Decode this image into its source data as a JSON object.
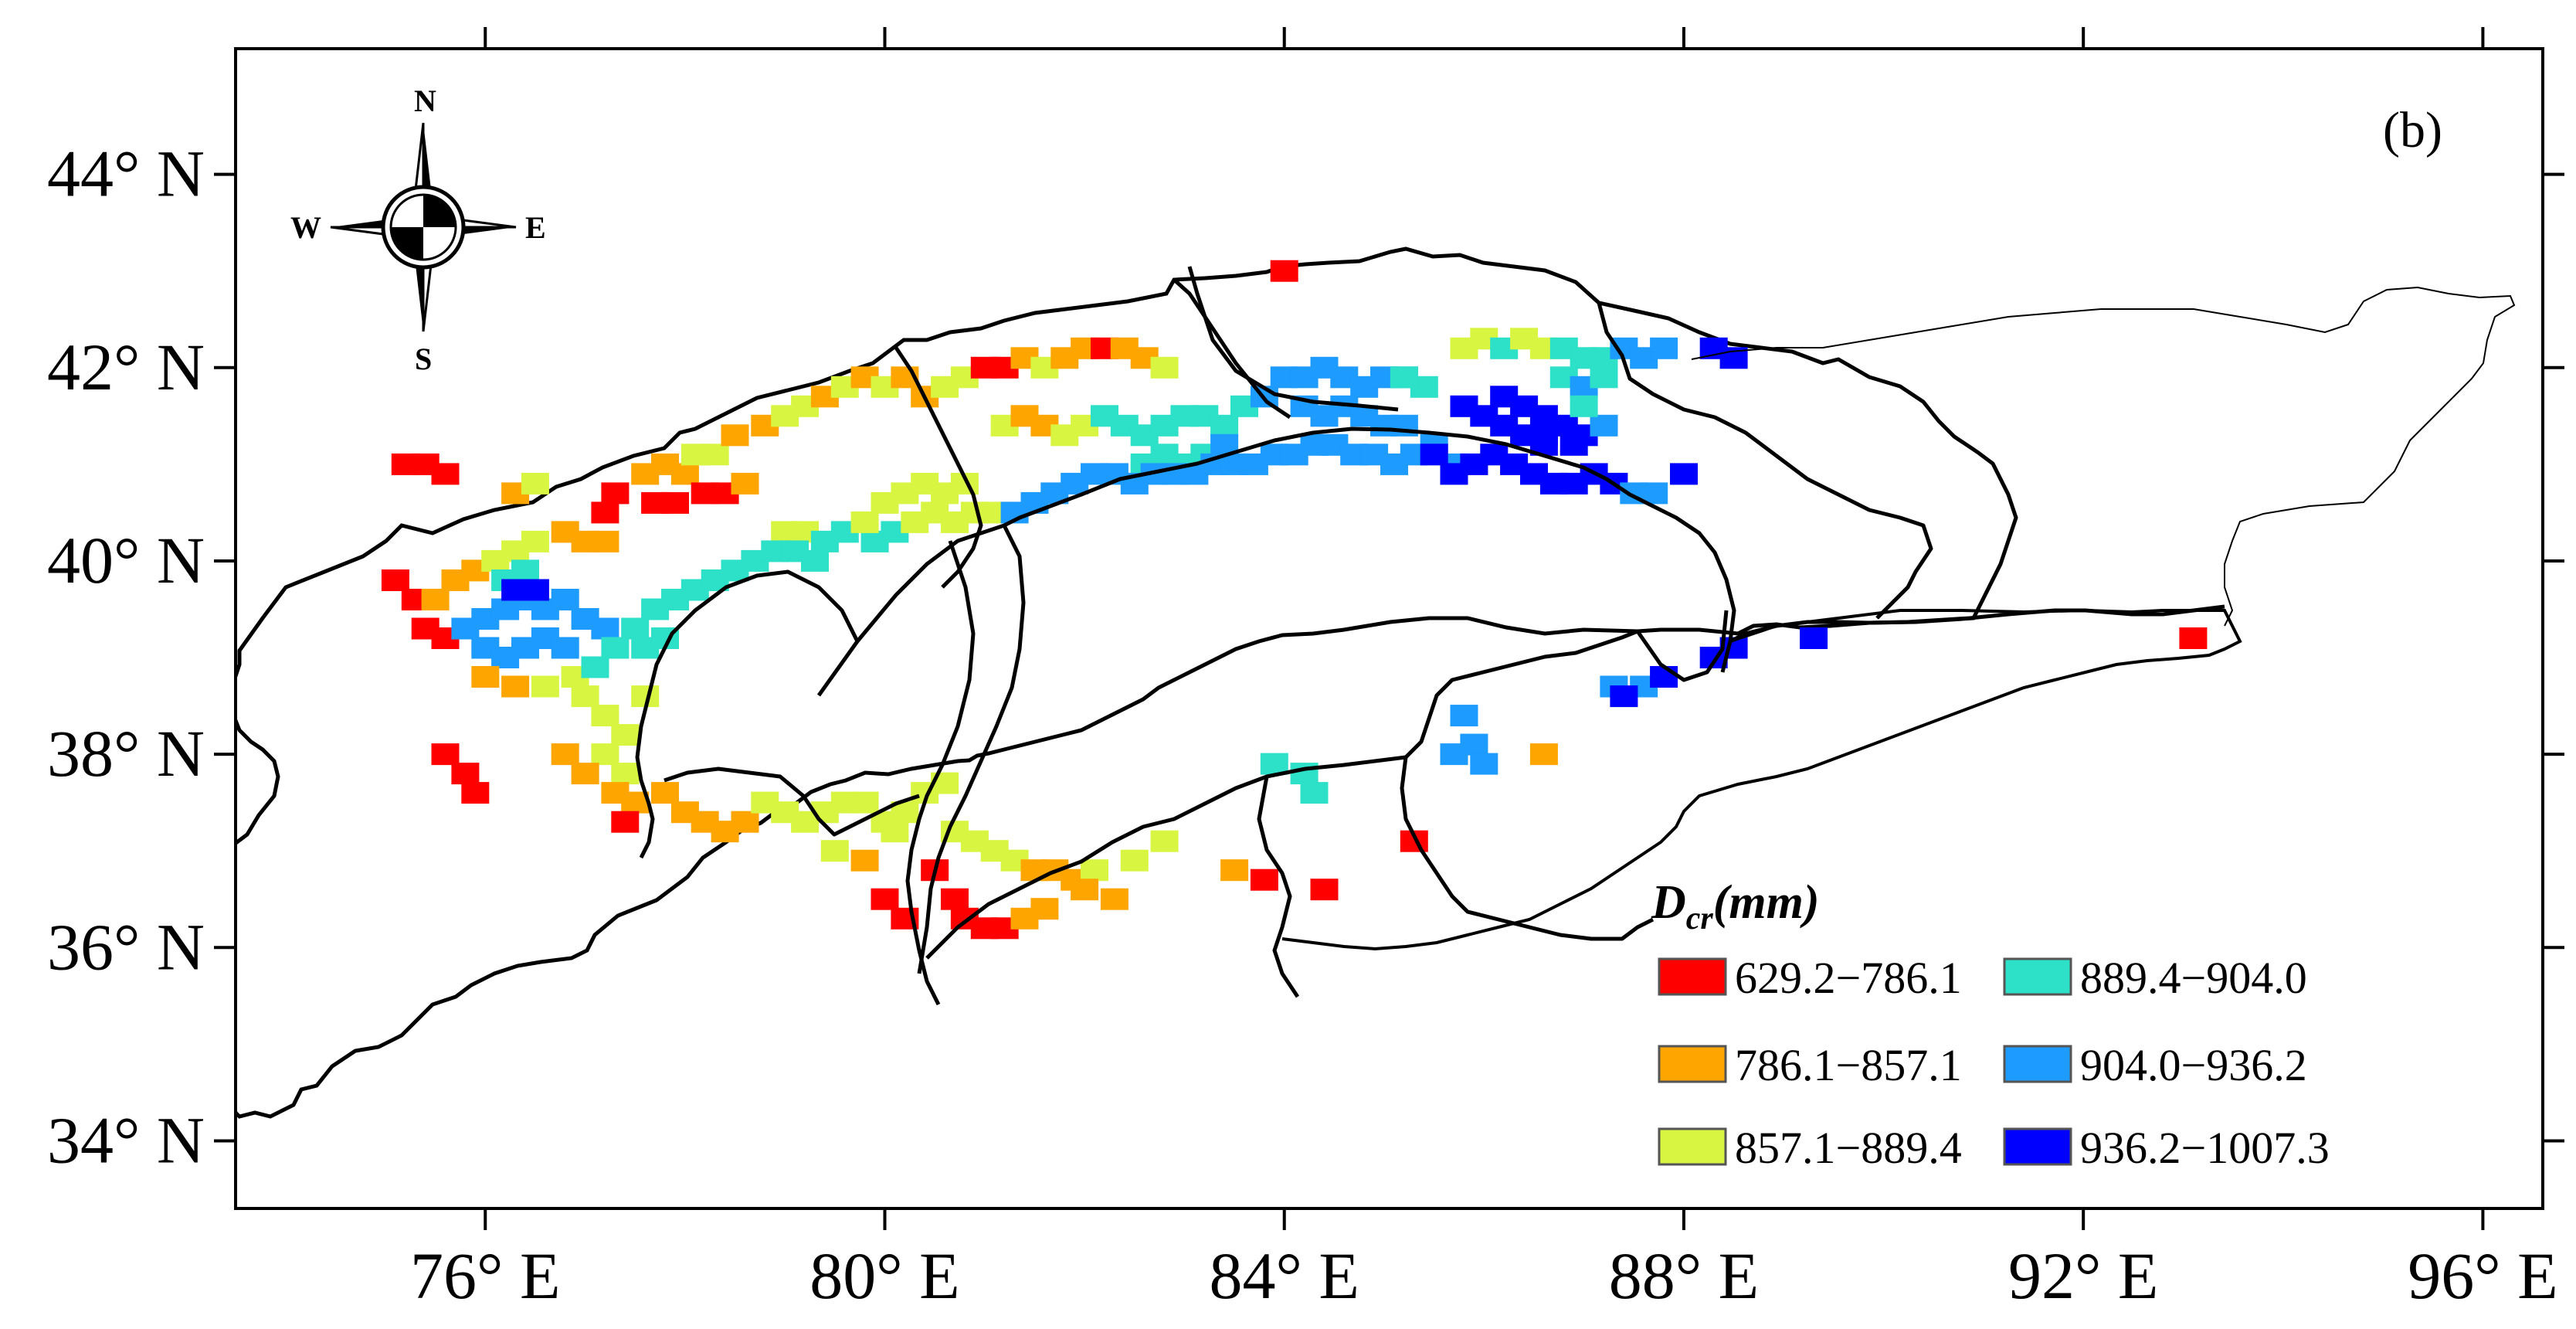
{
  "panel_label": "(b)",
  "compass": {
    "north": "N",
    "south": "S",
    "east": "E",
    "west": "W",
    "icon": "north-arrow-compass-rose"
  },
  "axes": {
    "x_ticks": [
      "76° E",
      "80° E",
      "84° E",
      "88° E",
      "92° E",
      "96° E"
    ],
    "y_ticks": [
      "44° N",
      "42° N",
      "40° N",
      "38° N",
      "36° N",
      "34° N"
    ]
  },
  "legend": {
    "title_main": "D",
    "title_sub": "cr",
    "title_unit": "(mm)",
    "items": [
      {
        "label": "629.2−786.1",
        "color": "#ff0000"
      },
      {
        "label": "786.1−857.1",
        "color": "#ffa500"
      },
      {
        "label": "857.1−889.4",
        "color": "#d8f542"
      },
      {
        "label": "889.4−904.0",
        "color": "#2de0c8"
      },
      {
        "label": "904.0−936.2",
        "color": "#1e9bff"
      },
      {
        "label": "936.2−1007.3",
        "color": "#0000ff"
      }
    ]
  },
  "class_colors": [
    "#ff0000",
    "#ffa500",
    "#d8f542",
    "#2de0c8",
    "#1e9bff",
    "#0000ff"
  ],
  "cells": [
    [
      75.2,
      41.0,
      0
    ],
    [
      75.4,
      41.0,
      0
    ],
    [
      75.6,
      40.9,
      0
    ],
    [
      76.3,
      40.7,
      1
    ],
    [
      76.5,
      40.8,
      2
    ],
    [
      77.2,
      40.5,
      0
    ],
    [
      77.3,
      40.7,
      0
    ],
    [
      77.6,
      40.9,
      1
    ],
    [
      77.8,
      41.0,
      1
    ],
    [
      78.0,
      40.9,
      1
    ],
    [
      78.1,
      41.1,
      2
    ],
    [
      78.3,
      41.1,
      2
    ],
    [
      78.5,
      41.3,
      1
    ],
    [
      78.8,
      41.4,
      1
    ],
    [
      79.0,
      41.5,
      2
    ],
    [
      79.2,
      41.6,
      2
    ],
    [
      79.4,
      41.7,
      1
    ],
    [
      79.6,
      41.8,
      2
    ],
    [
      79.8,
      41.9,
      1
    ],
    [
      80.0,
      41.8,
      2
    ],
    [
      80.2,
      41.9,
      1
    ],
    [
      80.4,
      41.7,
      1
    ],
    [
      80.6,
      41.8,
      2
    ],
    [
      80.8,
      41.9,
      2
    ],
    [
      81.0,
      42.0,
      0
    ],
    [
      81.2,
      42.0,
      0
    ],
    [
      81.4,
      42.1,
      1
    ],
    [
      81.6,
      42.0,
      2
    ],
    [
      81.8,
      42.1,
      1
    ],
    [
      82.0,
      42.2,
      1
    ],
    [
      82.2,
      42.2,
      0
    ],
    [
      82.4,
      42.2,
      1
    ],
    [
      82.6,
      42.1,
      1
    ],
    [
      82.8,
      42.0,
      2
    ],
    [
      77.7,
      40.6,
      0
    ],
    [
      77.9,
      40.6,
      0
    ],
    [
      78.2,
      40.7,
      0
    ],
    [
      78.4,
      40.7,
      0
    ],
    [
      78.6,
      40.8,
      1
    ],
    [
      79.0,
      40.3,
      2
    ],
    [
      79.2,
      40.3,
      2
    ],
    [
      79.4,
      40.2,
      3
    ],
    [
      79.6,
      40.3,
      3
    ],
    [
      79.9,
      40.2,
      3
    ],
    [
      80.1,
      40.3,
      3
    ],
    [
      80.3,
      40.4,
      2
    ],
    [
      80.5,
      40.5,
      2
    ],
    [
      80.7,
      40.4,
      2
    ],
    [
      80.9,
      40.5,
      2
    ],
    [
      81.1,
      40.5,
      2
    ],
    [
      79.8,
      40.4,
      2
    ],
    [
      80.0,
      40.6,
      2
    ],
    [
      80.2,
      40.7,
      2
    ],
    [
      80.4,
      40.8,
      2
    ],
    [
      80.6,
      40.7,
      2
    ],
    [
      80.8,
      40.8,
      2
    ],
    [
      81.2,
      41.4,
      2
    ],
    [
      81.4,
      41.5,
      1
    ],
    [
      81.6,
      41.4,
      1
    ],
    [
      81.8,
      41.3,
      2
    ],
    [
      82.0,
      41.4,
      2
    ],
    [
      82.2,
      41.5,
      3
    ],
    [
      82.4,
      41.4,
      3
    ],
    [
      82.6,
      41.3,
      3
    ],
    [
      82.8,
      41.4,
      3
    ],
    [
      83.0,
      41.5,
      3
    ],
    [
      83.2,
      41.5,
      3
    ],
    [
      83.4,
      41.4,
      3
    ],
    [
      83.6,
      41.6,
      3
    ],
    [
      83.8,
      41.7,
      4
    ],
    [
      82.6,
      41.0,
      3
    ],
    [
      82.8,
      41.1,
      3
    ],
    [
      83.0,
      41.0,
      3
    ],
    [
      83.2,
      41.1,
      3
    ],
    [
      83.4,
      41.2,
      4
    ],
    [
      81.3,
      40.5,
      4
    ],
    [
      81.5,
      40.6,
      4
    ],
    [
      81.7,
      40.7,
      4
    ],
    [
      81.9,
      40.8,
      4
    ],
    [
      82.1,
      40.9,
      4
    ],
    [
      82.3,
      40.9,
      4
    ],
    [
      82.5,
      40.8,
      4
    ],
    [
      82.7,
      40.9,
      4
    ],
    [
      82.9,
      40.9,
      4
    ],
    [
      83.1,
      40.9,
      4
    ],
    [
      83.3,
      41.0,
      4
    ],
    [
      83.5,
      41.0,
      4
    ],
    [
      83.7,
      41.0,
      4
    ],
    [
      83.9,
      41.1,
      4
    ],
    [
      84.1,
      41.1,
      4
    ],
    [
      84.3,
      41.2,
      4
    ],
    [
      84.5,
      41.2,
      4
    ],
    [
      84.7,
      41.1,
      4
    ],
    [
      84.9,
      41.1,
      4
    ],
    [
      85.1,
      41.0,
      4
    ],
    [
      85.3,
      41.1,
      4
    ],
    [
      85.5,
      41.2,
      4
    ],
    [
      85.7,
      41.0,
      4
    ],
    [
      84.0,
      41.9,
      4
    ],
    [
      84.2,
      41.9,
      4
    ],
    [
      84.4,
      42.0,
      4
    ],
    [
      84.6,
      41.9,
      4
    ],
    [
      84.8,
      41.8,
      4
    ],
    [
      85.0,
      41.9,
      4
    ],
    [
      85.2,
      41.9,
      4
    ],
    [
      85.4,
      41.8,
      3
    ],
    [
      84.2,
      41.6,
      4
    ],
    [
      84.4,
      41.5,
      4
    ],
    [
      84.6,
      41.6,
      4
    ],
    [
      84.8,
      41.5,
      4
    ],
    [
      85.0,
      41.4,
      4
    ],
    [
      85.2,
      41.4,
      4
    ],
    [
      85.5,
      41.1,
      5
    ],
    [
      85.7,
      40.9,
      5
    ],
    [
      85.9,
      41.0,
      5
    ],
    [
      86.1,
      41.1,
      5
    ],
    [
      86.3,
      41.0,
      5
    ],
    [
      86.5,
      40.9,
      5
    ],
    [
      86.7,
      40.8,
      5
    ],
    [
      86.9,
      40.8,
      5
    ],
    [
      87.1,
      40.9,
      5
    ],
    [
      87.3,
      40.8,
      5
    ],
    [
      87.5,
      40.7,
      4
    ],
    [
      87.7,
      40.7,
      4
    ],
    [
      85.8,
      41.6,
      5
    ],
    [
      86.0,
      41.5,
      5
    ],
    [
      86.2,
      41.4,
      5
    ],
    [
      86.4,
      41.3,
      5
    ],
    [
      86.6,
      41.2,
      5
    ],
    [
      86.2,
      41.7,
      5
    ],
    [
      86.4,
      41.6,
      5
    ],
    [
      86.6,
      41.5,
      5
    ],
    [
      85.8,
      42.2,
      2
    ],
    [
      86.0,
      42.3,
      2
    ],
    [
      86.2,
      42.2,
      3
    ],
    [
      86.4,
      42.3,
      2
    ],
    [
      86.6,
      42.2,
      2
    ],
    [
      86.8,
      42.2,
      3
    ],
    [
      87.0,
      42.1,
      3
    ],
    [
      87.2,
      42.1,
      3
    ],
    [
      87.4,
      42.2,
      4
    ],
    [
      87.6,
      42.1,
      4
    ],
    [
      87.8,
      42.2,
      4
    ],
    [
      86.8,
      41.9,
      3
    ],
    [
      87.0,
      41.8,
      4
    ],
    [
      87.2,
      41.9,
      3
    ],
    [
      86.6,
      41.3,
      5
    ],
    [
      86.8,
      41.4,
      5
    ],
    [
      87.0,
      41.3,
      5
    ],
    [
      87.2,
      41.4,
      4
    ],
    [
      88.3,
      42.2,
      5
    ],
    [
      88.5,
      42.1,
      5
    ],
    [
      75.1,
      39.8,
      0
    ],
    [
      75.3,
      39.6,
      0
    ],
    [
      75.4,
      39.3,
      0
    ],
    [
      75.6,
      39.2,
      0
    ],
    [
      75.5,
      39.6,
      1
    ],
    [
      75.7,
      39.8,
      1
    ],
    [
      75.9,
      39.9,
      1
    ],
    [
      76.1,
      40.0,
      2
    ],
    [
      76.3,
      40.1,
      2
    ],
    [
      76.5,
      40.2,
      2
    ],
    [
      76.8,
      40.3,
      1
    ],
    [
      77.0,
      40.2,
      1
    ],
    [
      77.2,
      40.2,
      1
    ],
    [
      75.8,
      39.3,
      4
    ],
    [
      76.0,
      39.4,
      4
    ],
    [
      76.2,
      39.5,
      4
    ],
    [
      76.4,
      39.6,
      4
    ],
    [
      76.6,
      39.5,
      4
    ],
    [
      76.8,
      39.6,
      4
    ],
    [
      77.0,
      39.4,
      4
    ],
    [
      77.2,
      39.3,
      4
    ],
    [
      76.0,
      39.1,
      4
    ],
    [
      76.2,
      39.0,
      4
    ],
    [
      76.4,
      39.1,
      4
    ],
    [
      76.6,
      39.2,
      4
    ],
    [
      76.8,
      39.1,
      4
    ],
    [
      76.2,
      39.8,
      3
    ],
    [
      76.4,
      39.9,
      3
    ],
    [
      76.3,
      39.7,
      5
    ],
    [
      76.5,
      39.7,
      5
    ],
    [
      76.0,
      38.8,
      1
    ],
    [
      76.3,
      38.7,
      1
    ],
    [
      76.6,
      38.7,
      2
    ],
    [
      76.9,
      38.8,
      2
    ],
    [
      77.1,
      38.9,
      3
    ],
    [
      77.3,
      39.1,
      3
    ],
    [
      77.5,
      39.3,
      3
    ],
    [
      77.7,
      39.5,
      3
    ],
    [
      77.9,
      39.6,
      3
    ],
    [
      78.1,
      39.7,
      3
    ],
    [
      78.3,
      39.8,
      3
    ],
    [
      78.5,
      39.9,
      3
    ],
    [
      78.7,
      40.0,
      3
    ],
    [
      78.9,
      40.1,
      3
    ],
    [
      79.1,
      40.1,
      3
    ],
    [
      79.3,
      40.0,
      3
    ],
    [
      77.6,
      39.1,
      3
    ],
    [
      77.8,
      39.2,
      3
    ],
    [
      77.0,
      38.6,
      2
    ],
    [
      77.2,
      38.4,
      2
    ],
    [
      77.4,
      38.2,
      2
    ],
    [
      77.2,
      38.0,
      2
    ],
    [
      77.4,
      37.8,
      2
    ],
    [
      77.6,
      38.6,
      2
    ],
    [
      77.3,
      37.6,
      1
    ],
    [
      77.5,
      37.5,
      1
    ],
    [
      77.4,
      37.3,
      0
    ],
    [
      75.6,
      38.0,
      0
    ],
    [
      75.8,
      37.8,
      0
    ],
    [
      75.9,
      37.6,
      0
    ],
    [
      76.8,
      38.0,
      1
    ],
    [
      77.0,
      37.8,
      1
    ],
    [
      77.8,
      37.6,
      1
    ],
    [
      78.0,
      37.4,
      1
    ],
    [
      78.2,
      37.3,
      1
    ],
    [
      78.4,
      37.2,
      1
    ],
    [
      78.6,
      37.3,
      1
    ],
    [
      78.8,
      37.5,
      2
    ],
    [
      79.0,
      37.4,
      2
    ],
    [
      79.2,
      37.3,
      2
    ],
    [
      79.4,
      37.4,
      2
    ],
    [
      79.6,
      37.5,
      2
    ],
    [
      79.8,
      37.5,
      2
    ],
    [
      80.0,
      37.3,
      2
    ],
    [
      80.2,
      37.4,
      2
    ],
    [
      80.4,
      37.6,
      2
    ],
    [
      80.6,
      37.7,
      2
    ],
    [
      80.1,
      37.2,
      2
    ],
    [
      79.5,
      37.0,
      2
    ],
    [
      79.8,
      36.9,
      1
    ],
    [
      80.7,
      37.2,
      2
    ],
    [
      80.9,
      37.1,
      2
    ],
    [
      81.1,
      37.0,
      2
    ],
    [
      81.3,
      36.9,
      2
    ],
    [
      81.5,
      36.8,
      1
    ],
    [
      81.7,
      36.8,
      1
    ],
    [
      81.9,
      36.7,
      1
    ],
    [
      82.1,
      36.8,
      2
    ],
    [
      82.5,
      36.9,
      2
    ],
    [
      82.8,
      37.1,
      2
    ],
    [
      80.5,
      36.8,
      0
    ],
    [
      80.7,
      36.5,
      0
    ],
    [
      80.8,
      36.3,
      0
    ],
    [
      81.0,
      36.2,
      0
    ],
    [
      81.2,
      36.2,
      0
    ],
    [
      81.4,
      36.3,
      1
    ],
    [
      81.6,
      36.4,
      1
    ],
    [
      82.0,
      36.6,
      1
    ],
    [
      82.3,
      36.5,
      1
    ],
    [
      80.0,
      36.5,
      0
    ],
    [
      80.2,
      36.3,
      0
    ],
    [
      83.5,
      36.8,
      1
    ],
    [
      83.8,
      36.7,
      0
    ],
    [
      84.4,
      36.6,
      0
    ],
    [
      83.9,
      37.9,
      3
    ],
    [
      84.2,
      37.8,
      3
    ],
    [
      84.3,
      37.6,
      3
    ],
    [
      85.3,
      37.1,
      0
    ],
    [
      85.8,
      38.4,
      4
    ],
    [
      85.9,
      38.1,
      4
    ],
    [
      86.0,
      37.9,
      4
    ],
    [
      85.7,
      38.0,
      4
    ],
    [
      86.6,
      38.0,
      1
    ],
    [
      87.3,
      38.7,
      4
    ],
    [
      87.6,
      38.7,
      4
    ],
    [
      87.8,
      38.8,
      5
    ],
    [
      87.4,
      38.6,
      5
    ],
    [
      88.3,
      39.0,
      5
    ],
    [
      88.5,
      39.1,
      5
    ],
    [
      89.3,
      39.2,
      5
    ],
    [
      84.0,
      43.0,
      0
    ],
    [
      85.2,
      41.9,
      3
    ],
    [
      86.9,
      41.2,
      5
    ],
    [
      88.0,
      40.9,
      5
    ],
    [
      93.1,
      39.2,
      0
    ],
    [
      87.0,
      41.6,
      3
    ]
  ]
}
